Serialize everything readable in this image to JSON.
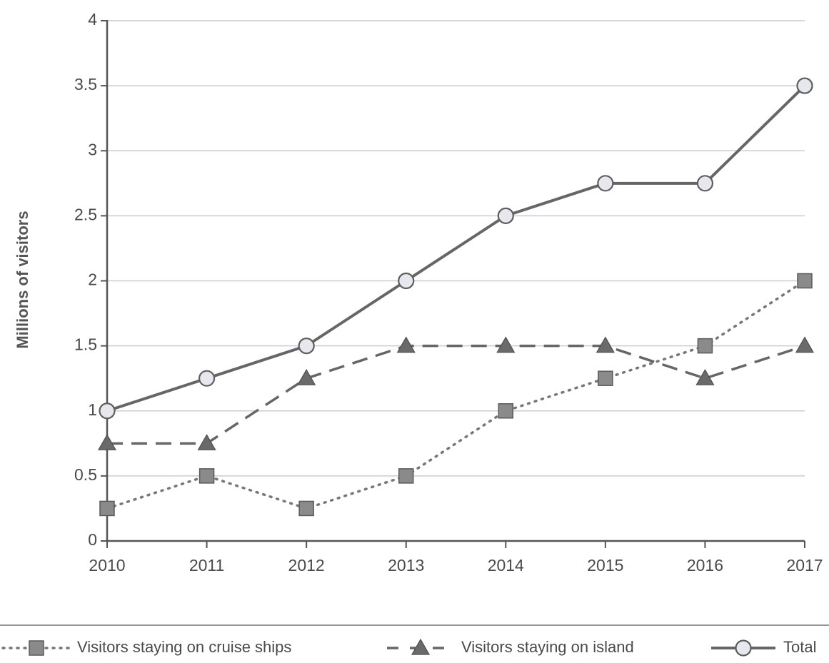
{
  "chart_data": {
    "type": "line",
    "title": "",
    "xlabel": "",
    "ylabel": "Millions of visitors",
    "x": [
      "2010",
      "2011",
      "2012",
      "2013",
      "2014",
      "2015",
      "2016",
      "2017"
    ],
    "ylim": [
      0,
      4
    ],
    "yticks": [
      "0",
      "0.5",
      "1",
      "1.5",
      "2",
      "2.5",
      "3",
      "3.5",
      "4"
    ],
    "grid": true,
    "legend_position": "bottom",
    "series": [
      {
        "name": "Visitors staying on cruise ships",
        "values": [
          0.25,
          0.5,
          0.25,
          0.5,
          1.0,
          1.25,
          1.5,
          2.0
        ],
        "style": "dotted",
        "marker": "square",
        "color": "#777777"
      },
      {
        "name": "Visitors staying on island",
        "values": [
          0.75,
          0.75,
          1.25,
          1.5,
          1.5,
          1.5,
          1.25,
          1.5
        ],
        "style": "dashed",
        "marker": "triangle",
        "color": "#666666"
      },
      {
        "name": "Total",
        "values": [
          1.0,
          1.25,
          1.5,
          2.0,
          2.5,
          2.75,
          2.75,
          3.5
        ],
        "style": "solid",
        "marker": "circle",
        "color": "#666666"
      }
    ]
  },
  "colors": {
    "axis": "#555555",
    "grid": "#c8ccd6",
    "marker_fill_square": "#8a8a8a",
    "marker_fill_triangle": "#6a6a6a",
    "marker_fill_circle": "#e6e8ee",
    "legend_rule": "#777777"
  }
}
